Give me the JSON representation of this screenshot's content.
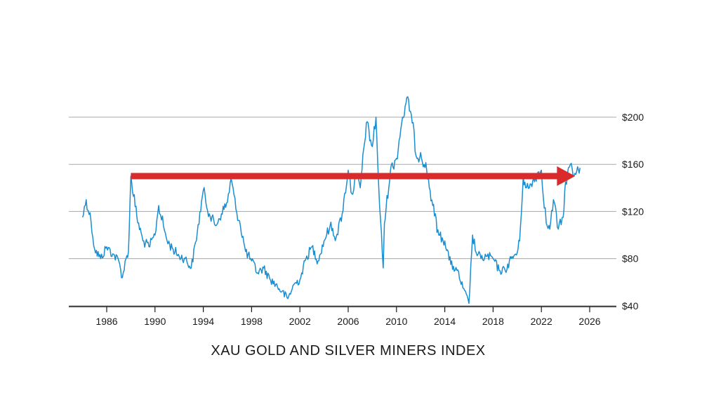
{
  "chart_data": {
    "type": "line",
    "title": "XAU GOLD AND SILVER MINERS INDEX",
    "xlabel": "",
    "ylabel": "",
    "x_ticks": [
      "1986",
      "1990",
      "1994",
      "1998",
      "2002",
      "2006",
      "2010",
      "2014",
      "2018",
      "2022",
      "2026"
    ],
    "y_ticks": [
      "$40",
      "$80",
      "$120",
      "$160",
      "$200"
    ],
    "xlim": [
      1983,
      2027
    ],
    "ylim": [
      0,
      230
    ],
    "grid": true,
    "colors": {
      "series": "#1a8ed0",
      "arrow": "#d92b2b",
      "grid": "#a8a8a8"
    },
    "series": [
      {
        "x": [
          1984.0,
          1984.3,
          1984.7,
          1985.0,
          1985.5,
          1986.0,
          1986.5,
          1987.0,
          1987.3,
          1987.6,
          1987.8,
          1988.0,
          1988.5,
          1989.0,
          1989.5,
          1990.0,
          1990.3,
          1990.7,
          1991.0,
          1991.5,
          1992.0,
          1992.5,
          1993.0,
          1993.5,
          1994.0,
          1994.5,
          1995.0,
          1995.5,
          1996.0,
          1996.3,
          1996.7,
          1997.0,
          1997.5,
          1998.0,
          1998.5,
          1999.0,
          1999.5,
          2000.0,
          2000.5,
          2001.0,
          2001.5,
          2002.0,
          2002.5,
          2003.0,
          2003.5,
          2004.0,
          2004.5,
          2005.0,
          2005.5,
          2006.0,
          2006.3,
          2006.7,
          2007.0,
          2007.5,
          2008.0,
          2008.3,
          2008.6,
          2008.9,
          2009.0,
          2009.5,
          2010.0,
          2010.5,
          2011.0,
          2011.3,
          2011.7,
          2012.0,
          2012.5,
          2013.0,
          2013.5,
          2014.0,
          2014.5,
          2015.0,
          2015.5,
          2016.0,
          2016.3,
          2016.6,
          2017.0,
          2017.5,
          2018.0,
          2018.5,
          2019.0,
          2019.5,
          2020.0,
          2020.2,
          2020.5,
          2020.7,
          2021.0,
          2021.5,
          2022.0,
          2022.4,
          2022.7,
          2023.0,
          2023.4,
          2023.8,
          2024.0,
          2024.4,
          2024.7,
          2025.0,
          2025.2
        ],
        "y": [
          115,
          130,
          112,
          88,
          80,
          90,
          84,
          78,
          64,
          80,
          86,
          150,
          115,
          95,
          90,
          100,
          125,
          108,
          95,
          88,
          82,
          80,
          72,
          102,
          138,
          118,
          108,
          118,
          128,
          148,
          122,
          112,
          86,
          78,
          68,
          72,
          63,
          58,
          52,
          46,
          58,
          62,
          80,
          90,
          78,
          95,
          108,
          98,
          118,
          155,
          135,
          150,
          140,
          195,
          175,
          200,
          125,
          72,
          110,
          155,
          165,
          200,
          215,
          195,
          165,
          170,
          155,
          125,
          100,
          95,
          75,
          70,
          55,
          42,
          100,
          85,
          80,
          82,
          80,
          70,
          70,
          80,
          85,
          95,
          150,
          140,
          140,
          150,
          155,
          110,
          105,
          130,
          105,
          115,
          145,
          160,
          150,
          158,
          157
        ]
      }
    ],
    "annotations": [
      {
        "type": "arrow",
        "x_start": 1988.0,
        "x_end": 2024.8,
        "y": 150
      }
    ]
  }
}
